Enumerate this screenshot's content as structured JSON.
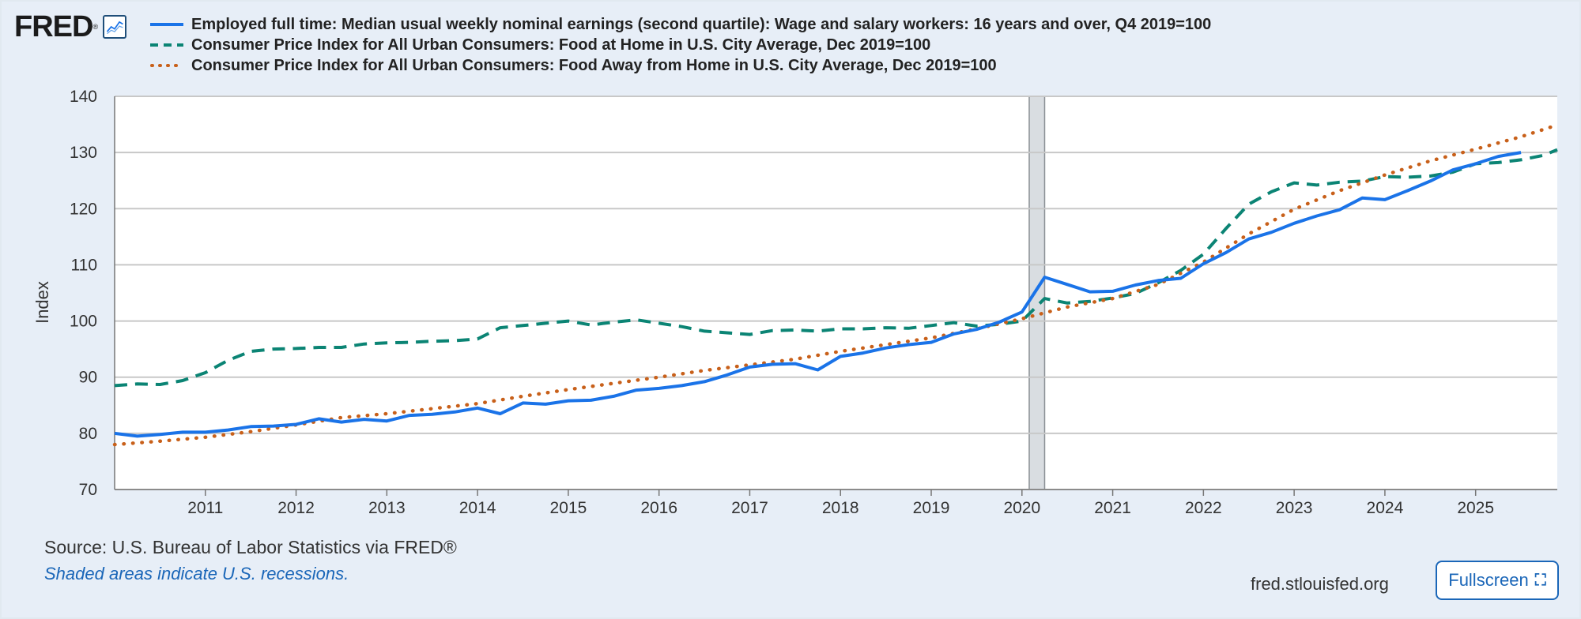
{
  "logo": {
    "text": "FRED",
    "reg": "®"
  },
  "colors": {
    "series1": "#1a73e8",
    "series2": "#0b8474",
    "series3": "#c8601a",
    "recession": "#d9dde1"
  },
  "chart_data": {
    "type": "line",
    "title": "",
    "xlabel": "",
    "ylabel": "Index",
    "xlim": [
      2010.0,
      2025.9
    ],
    "ylim": [
      70,
      140
    ],
    "yticks": [
      70,
      80,
      90,
      100,
      110,
      120,
      130,
      140
    ],
    "xticks": [
      2011,
      2012,
      2013,
      2014,
      2015,
      2016,
      2017,
      2018,
      2019,
      2020,
      2021,
      2022,
      2023,
      2024,
      2025
    ],
    "xtick_labels": [
      "2011",
      "2012",
      "2013",
      "2014",
      "2015",
      "2016",
      "2017",
      "2018",
      "2019",
      "2020",
      "2021",
      "2022",
      "2023",
      "2024",
      "2025"
    ],
    "ytick_labels": [
      "70",
      "80",
      "90",
      "100",
      "110",
      "120",
      "130",
      "140"
    ],
    "recessions": [
      [
        2020.08,
        2020.25
      ]
    ],
    "series": [
      {
        "name": "Employed full time: Median usual weekly nominal earnings (second quartile): Wage and salary workers: 16 years and over, Q4 2019=100",
        "style": "solid",
        "x": [
          2010.0,
          2010.25,
          2010.5,
          2010.75,
          2011.0,
          2011.25,
          2011.5,
          2011.75,
          2012.0,
          2012.25,
          2012.5,
          2012.75,
          2013.0,
          2013.25,
          2013.5,
          2013.75,
          2014.0,
          2014.25,
          2014.5,
          2014.75,
          2015.0,
          2015.25,
          2015.5,
          2015.75,
          2016.0,
          2016.25,
          2016.5,
          2016.75,
          2017.0,
          2017.25,
          2017.5,
          2017.75,
          2018.0,
          2018.25,
          2018.5,
          2018.75,
          2019.0,
          2019.25,
          2019.5,
          2019.75,
          2020.0,
          2020.25,
          2020.5,
          2020.75,
          2021.0,
          2021.25,
          2021.5,
          2021.75,
          2022.0,
          2022.25,
          2022.5,
          2022.75,
          2023.0,
          2023.25,
          2023.5,
          2023.75,
          2024.0,
          2024.25,
          2024.5,
          2024.75,
          2025.0,
          2025.25,
          2025.5
        ],
        "values": [
          80.0,
          79.5,
          79.8,
          80.2,
          80.2,
          80.6,
          81.2,
          81.3,
          81.6,
          82.6,
          82.0,
          82.5,
          82.2,
          83.2,
          83.4,
          83.8,
          84.5,
          83.5,
          85.4,
          85.2,
          85.8,
          85.9,
          86.6,
          87.7,
          88.0,
          88.5,
          89.2,
          90.4,
          91.8,
          92.3,
          92.4,
          91.3,
          93.7,
          94.3,
          95.2,
          95.8,
          96.2,
          97.7,
          98.5,
          99.8,
          101.6,
          107.8,
          106.5,
          105.2,
          105.3,
          106.4,
          107.2,
          107.6,
          110.2,
          112.2,
          114.6,
          115.8,
          117.4,
          118.7,
          119.8,
          121.9,
          121.6,
          123.2,
          124.9,
          126.9,
          128.0,
          129.3,
          130.0
        ]
      },
      {
        "name": "Consumer Price Index for All Urban Consumers: Food at Home in U.S. City Average, Dec 2019=100",
        "style": "dashed",
        "x": [
          2010.0,
          2010.25,
          2010.5,
          2010.75,
          2011.0,
          2011.25,
          2011.5,
          2011.75,
          2012.0,
          2012.25,
          2012.5,
          2012.75,
          2013.0,
          2013.25,
          2013.5,
          2013.75,
          2014.0,
          2014.25,
          2014.5,
          2014.75,
          2015.0,
          2015.25,
          2015.5,
          2015.75,
          2016.0,
          2016.25,
          2016.5,
          2016.75,
          2017.0,
          2017.25,
          2017.5,
          2017.75,
          2018.0,
          2018.25,
          2018.5,
          2018.75,
          2019.0,
          2019.25,
          2019.5,
          2019.75,
          2020.0,
          2020.25,
          2020.5,
          2020.75,
          2021.0,
          2021.25,
          2021.5,
          2021.75,
          2022.0,
          2022.25,
          2022.5,
          2022.75,
          2023.0,
          2023.25,
          2023.5,
          2023.75,
          2024.0,
          2024.25,
          2024.5,
          2024.75,
          2025.0,
          2025.25,
          2025.5,
          2025.75,
          2025.9
        ],
        "values": [
          88.5,
          88.8,
          88.7,
          89.4,
          90.8,
          93.0,
          94.6,
          95.0,
          95.1,
          95.3,
          95.3,
          95.9,
          96.1,
          96.2,
          96.4,
          96.5,
          96.8,
          98.8,
          99.2,
          99.6,
          100.0,
          99.3,
          99.8,
          100.2,
          99.6,
          99.0,
          98.2,
          97.9,
          97.6,
          98.3,
          98.4,
          98.2,
          98.6,
          98.6,
          98.8,
          98.7,
          99.2,
          99.7,
          99.1,
          99.4,
          100.0,
          104.0,
          103.2,
          103.5,
          104.1,
          104.9,
          106.8,
          109.0,
          111.9,
          116.5,
          120.8,
          123.0,
          124.6,
          124.2,
          124.7,
          124.9,
          125.7,
          125.6,
          125.8,
          126.5,
          128.0,
          128.2,
          128.7,
          129.5,
          130.5
        ]
      },
      {
        "name": "Consumer Price Index for All Urban Consumers: Food Away from Home in U.S. City Average, Dec 2019=100",
        "style": "dotted",
        "x": [
          2010.0,
          2010.5,
          2011.0,
          2011.5,
          2012.0,
          2012.5,
          2013.0,
          2013.5,
          2014.0,
          2014.5,
          2015.0,
          2015.5,
          2016.0,
          2016.5,
          2017.0,
          2017.5,
          2018.0,
          2018.5,
          2019.0,
          2019.5,
          2020.0,
          2020.5,
          2021.0,
          2021.5,
          2022.0,
          2022.5,
          2023.0,
          2023.5,
          2024.0,
          2024.5,
          2025.0,
          2025.5,
          2025.9
        ],
        "values": [
          78.0,
          78.6,
          79.3,
          80.3,
          81.5,
          82.8,
          83.5,
          84.4,
          85.3,
          86.6,
          87.8,
          88.9,
          90.0,
          91.2,
          92.2,
          93.2,
          94.6,
          95.8,
          97.0,
          98.6,
          100.4,
          102.5,
          104.0,
          106.5,
          110.5,
          115.5,
          119.9,
          123.2,
          126.0,
          128.5,
          130.6,
          132.8,
          134.9
        ]
      }
    ]
  },
  "source_text": "Source: U.S. Bureau of Labor Statistics via FRED®",
  "recession_note": "Shaded areas indicate U.S. recessions.",
  "site": "fred.stlouisfed.org",
  "fullscreen_label": "Fullscreen"
}
